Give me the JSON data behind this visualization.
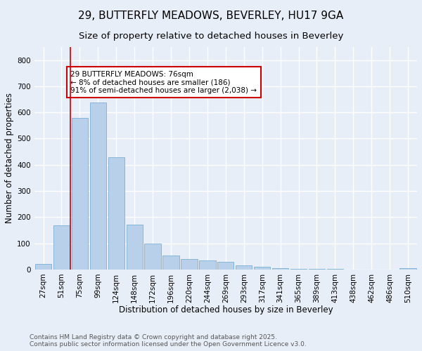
{
  "title": "29, BUTTERFLY MEADOWS, BEVERLEY, HU17 9GA",
  "subtitle": "Size of property relative to detached houses in Beverley",
  "xlabel": "Distribution of detached houses by size in Beverley",
  "ylabel": "Number of detached properties",
  "bar_labels": [
    "27sqm",
    "51sqm",
    "75sqm",
    "99sqm",
    "124sqm",
    "148sqm",
    "172sqm",
    "196sqm",
    "220sqm",
    "244sqm",
    "269sqm",
    "293sqm",
    "317sqm",
    "341sqm",
    "365sqm",
    "389sqm",
    "413sqm",
    "438sqm",
    "462sqm",
    "486sqm",
    "510sqm"
  ],
  "bar_values": [
    20,
    168,
    578,
    638,
    430,
    172,
    100,
    53,
    40,
    35,
    28,
    16,
    10,
    5,
    3,
    2,
    2,
    1,
    1,
    0,
    5
  ],
  "bar_color": "#b8d0ea",
  "bar_edge_color": "#7aafd4",
  "vline_color": "#cc0000",
  "annotation_text": "29 BUTTERFLY MEADOWS: 76sqm\n← 8% of detached houses are smaller (186)\n91% of semi-detached houses are larger (2,038) →",
  "annotation_box_facecolor": "#ffffff",
  "annotation_box_edgecolor": "#cc0000",
  "ylim": [
    0,
    850
  ],
  "yticks": [
    0,
    100,
    200,
    300,
    400,
    500,
    600,
    700,
    800
  ],
  "background_color": "#e8eef8",
  "grid_color": "#ffffff",
  "footer_line1": "Contains HM Land Registry data © Crown copyright and database right 2025.",
  "footer_line2": "Contains public sector information licensed under the Open Government Licence v3.0.",
  "title_fontsize": 11,
  "subtitle_fontsize": 9.5,
  "axis_label_fontsize": 8.5,
  "tick_fontsize": 7.5,
  "annotation_fontsize": 7.5,
  "footer_fontsize": 6.5,
  "vline_index": 2
}
